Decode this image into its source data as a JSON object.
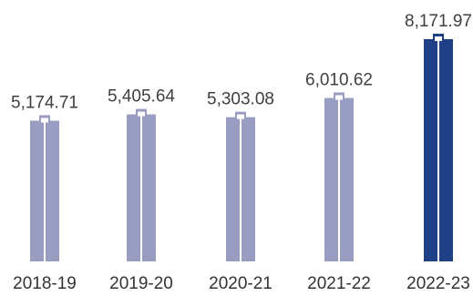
{
  "chart_data": {
    "type": "bar",
    "title": "",
    "xlabel": "",
    "ylabel": "",
    "categories": [
      "2018-19",
      "2019-20",
      "2020-21",
      "2021-22",
      "2022-23"
    ],
    "values": [
      5174.71,
      5405.64,
      5303.08,
      6010.62,
      8171.97
    ],
    "value_labels": [
      "5,174.71",
      "5,405.64",
      "5,303.08",
      "6,010.62",
      "8,171.97"
    ],
    "ylim": [
      0,
      8171.97
    ],
    "grid": false,
    "legend": "none",
    "colors": {
      "bar": "#9a9dc2",
      "highlight_bar": "#1f3f86",
      "highlight_index": 4,
      "bar_inner_line": "#ffffff"
    }
  }
}
